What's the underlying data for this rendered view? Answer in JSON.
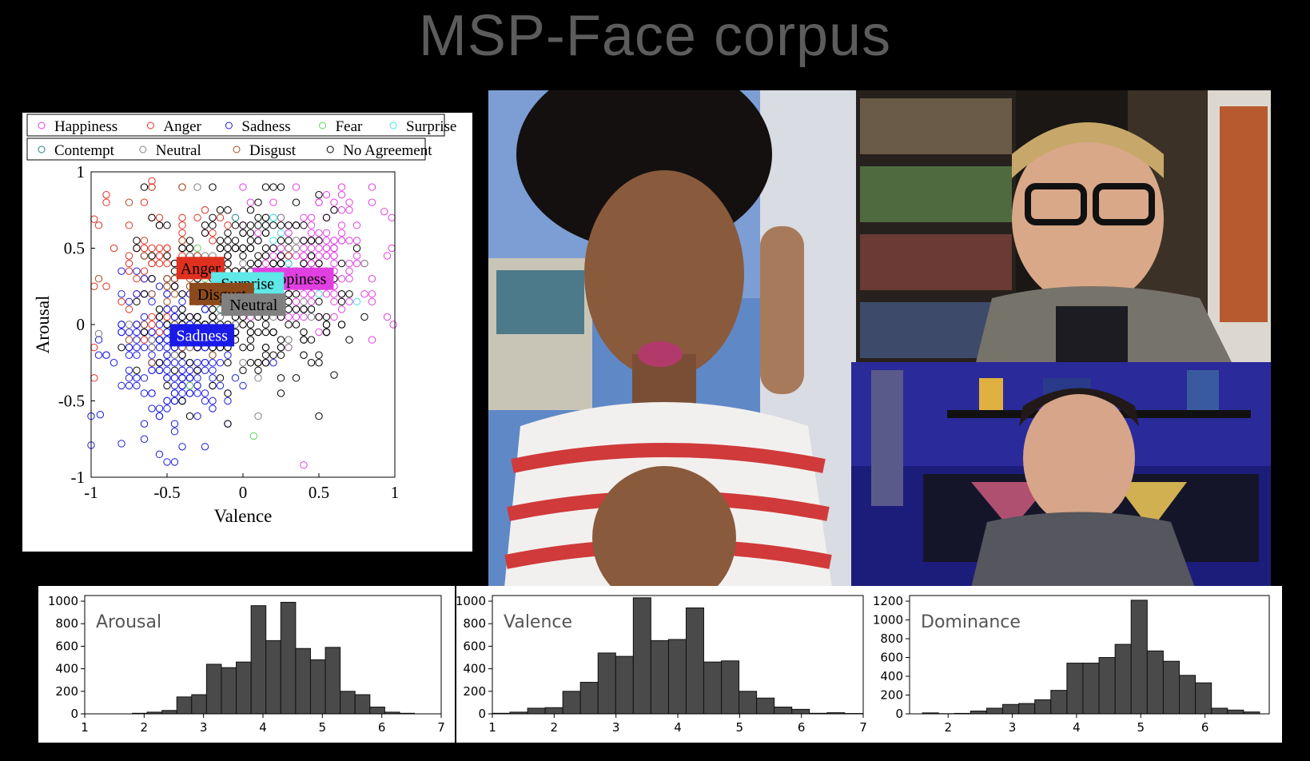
{
  "title": "MSP-Face corpus",
  "colors": {
    "background": "#000000",
    "title": "#5c5c5c",
    "bar": "#4a4a4a"
  },
  "chart_data": [
    {
      "type": "scatter",
      "xlabel": "Valence",
      "ylabel": "Arousal",
      "xlim": [
        -1,
        1
      ],
      "ylim": [
        -1,
        1
      ],
      "xticks": [
        "-1",
        "-0.5",
        "0",
        "0.5",
        "1"
      ],
      "yticks": [
        "1",
        "0.5",
        "0",
        "-0.5",
        "-1"
      ],
      "grid": false,
      "legend_position": "top",
      "legend": [
        {
          "name": "Happiness",
          "color": "#e040e0"
        },
        {
          "name": "Anger",
          "color": "#e03020"
        },
        {
          "name": "Sadness",
          "color": "#1a1ae0"
        },
        {
          "name": "Fear",
          "color": "#60d060"
        },
        {
          "name": "Surprise",
          "color": "#40e0e0"
        },
        {
          "name": "Contempt",
          "color": "#208080"
        },
        {
          "name": "Neutral",
          "color": "#808080"
        },
        {
          "name": "Disgust",
          "color": "#a05020"
        },
        {
          "name": "No Agreement",
          "color": "#000000"
        }
      ],
      "labels": [
        {
          "text": "Anger",
          "x": -0.28,
          "y": 0.37,
          "bg": "#e0301f",
          "fg": "#000000"
        },
        {
          "text": "Happiness",
          "x": 0.33,
          "y": 0.3,
          "bg": "#e040e0",
          "fg": "#000000"
        },
        {
          "text": "Surprise",
          "x": 0.03,
          "y": 0.27,
          "bg": "#5ee8e8",
          "fg": "#000000"
        },
        {
          "text": "Disgust",
          "x": -0.14,
          "y": 0.2,
          "bg": "#8c4a1a",
          "fg": "#000000"
        },
        {
          "text": "Neutral",
          "x": 0.07,
          "y": 0.13,
          "bg": "#808080",
          "fg": "#000000"
        },
        {
          "text": "Sadness",
          "x": -0.27,
          "y": -0.07,
          "bg": "#1a1ae8",
          "fg": "#ffffff"
        }
      ],
      "clusters": [
        {
          "series": "Happiness",
          "cx": 0.45,
          "cy": 0.4,
          "sx": 0.22,
          "sy": 0.22,
          "n": 190
        },
        {
          "series": "Anger",
          "cx": -0.48,
          "cy": 0.4,
          "sx": 0.22,
          "sy": 0.22,
          "n": 85
        },
        {
          "series": "Sadness",
          "cx": -0.45,
          "cy": -0.2,
          "sx": 0.2,
          "sy": 0.25,
          "n": 250
        },
        {
          "series": "Fear",
          "cx": -0.2,
          "cy": 0.2,
          "sx": 0.25,
          "sy": 0.3,
          "n": 12
        },
        {
          "series": "Surprise",
          "cx": 0.2,
          "cy": 0.45,
          "sx": 0.25,
          "sy": 0.2,
          "n": 20
        },
        {
          "series": "Contempt",
          "cx": -0.1,
          "cy": 0.3,
          "sx": 0.25,
          "sy": 0.25,
          "n": 14
        },
        {
          "series": "Neutral",
          "cx": 0.0,
          "cy": 0.1,
          "sx": 0.3,
          "sy": 0.3,
          "n": 60
        },
        {
          "series": "Disgust",
          "cx": -0.35,
          "cy": 0.35,
          "sx": 0.25,
          "sy": 0.25,
          "n": 45
        },
        {
          "series": "No Agreement",
          "cx": 0.0,
          "cy": 0.2,
          "sx": 0.32,
          "sy": 0.3,
          "n": 320
        }
      ],
      "points": [
        {
          "series": "Anger",
          "x": -0.6,
          "y": 0.94
        },
        {
          "series": "Anger",
          "x": -0.98,
          "y": 0.69
        },
        {
          "series": "Happiness",
          "x": 0.93,
          "y": 0.74
        },
        {
          "series": "Happiness",
          "x": 0.99,
          "y": 0.0
        },
        {
          "series": "Happiness",
          "x": 0.4,
          "y": -0.92
        },
        {
          "series": "Sadness",
          "x": -1.0,
          "y": -0.6
        },
        {
          "series": "Sadness",
          "x": -0.94,
          "y": -0.59
        },
        {
          "series": "Sadness",
          "x": -1.0,
          "y": -0.79
        },
        {
          "series": "Sadness",
          "x": -0.8,
          "y": -0.78
        },
        {
          "series": "Fear",
          "x": 0.07,
          "y": -0.73
        },
        {
          "series": "No Agreement",
          "x": 0.6,
          "y": -0.33
        },
        {
          "series": "Neutral",
          "x": -0.95,
          "y": -0.06
        }
      ]
    },
    {
      "type": "bar",
      "title": "Arousal",
      "xticks": [
        "1",
        "2",
        "3",
        "4",
        "5",
        "6",
        "7"
      ],
      "xlim": [
        1,
        7
      ],
      "yticks": [
        "0",
        "200",
        "400",
        "600",
        "800",
        "1000"
      ],
      "ylim": [
        0,
        1050
      ],
      "bin_start": 1.8,
      "bin_width": 0.25,
      "values": [
        5,
        15,
        30,
        150,
        170,
        440,
        410,
        460,
        960,
        650,
        990,
        580,
        480,
        590,
        200,
        170,
        60,
        15,
        5
      ]
    },
    {
      "type": "bar",
      "title": "Valence",
      "xticks": [
        "1",
        "2",
        "3",
        "4",
        "5",
        "6",
        "7"
      ],
      "xlim": [
        1,
        7
      ],
      "yticks": [
        "0",
        "200",
        "400",
        "600",
        "800",
        "1000"
      ],
      "ylim": [
        0,
        1050
      ],
      "bin_start": 1.0,
      "bin_width": 0.285,
      "values": [
        5,
        15,
        50,
        55,
        200,
        280,
        540,
        510,
        1030,
        650,
        660,
        940,
        460,
        470,
        200,
        140,
        60,
        40,
        5,
        10,
        3
      ]
    },
    {
      "type": "bar",
      "title": "Dominance",
      "xticks": [
        "2",
        "3",
        "4",
        "5",
        "6"
      ],
      "xlim": [
        1.4,
        7.0
      ],
      "yticks": [
        "0",
        "200",
        "400",
        "600",
        "800",
        "1000",
        "1200"
      ],
      "ylim": [
        0,
        1260
      ],
      "bin_start": 1.6,
      "bin_width": 0.25,
      "values": [
        10,
        2,
        5,
        30,
        60,
        100,
        110,
        150,
        250,
        540,
        540,
        600,
        740,
        1210,
        670,
        560,
        410,
        330,
        60,
        40,
        20
      ]
    }
  ]
}
